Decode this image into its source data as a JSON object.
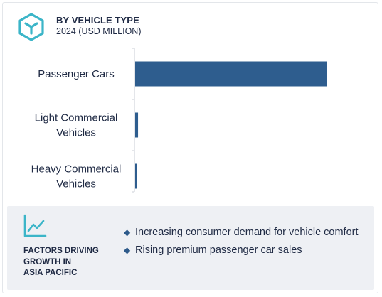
{
  "header": {
    "title": "BY VEHICLE TYPE",
    "subtitle": "2024 (USD MILLION)",
    "icon": "hexagon-cube-icon"
  },
  "colors": {
    "bar": "#2e5d8e",
    "accent": "#3bb5c8",
    "axis": "#c9ced6",
    "footer_bg": "#eef0f4",
    "text": "#1f2a44"
  },
  "chart_data": {
    "type": "bar",
    "orientation": "horizontal",
    "categories": [
      "Passenger Cars",
      "Light Commercial\nVehicles",
      "Heavy Commercial\nVehicles"
    ],
    "values": [
      100,
      1.5,
      0.8
    ],
    "value_scale": "relative (no numeric axis shown)",
    "grid": false,
    "legend": "none",
    "xlim": [
      0,
      100
    ]
  },
  "footer": {
    "icon": "trend-line-icon",
    "title": "FACTORS DRIVING\nGROWTH IN\nASIA PACIFIC",
    "bullet_icon": "diamond-icon",
    "factors": [
      "Increasing consumer demand for vehicle comfort",
      "Rising premium passenger car sales"
    ]
  }
}
